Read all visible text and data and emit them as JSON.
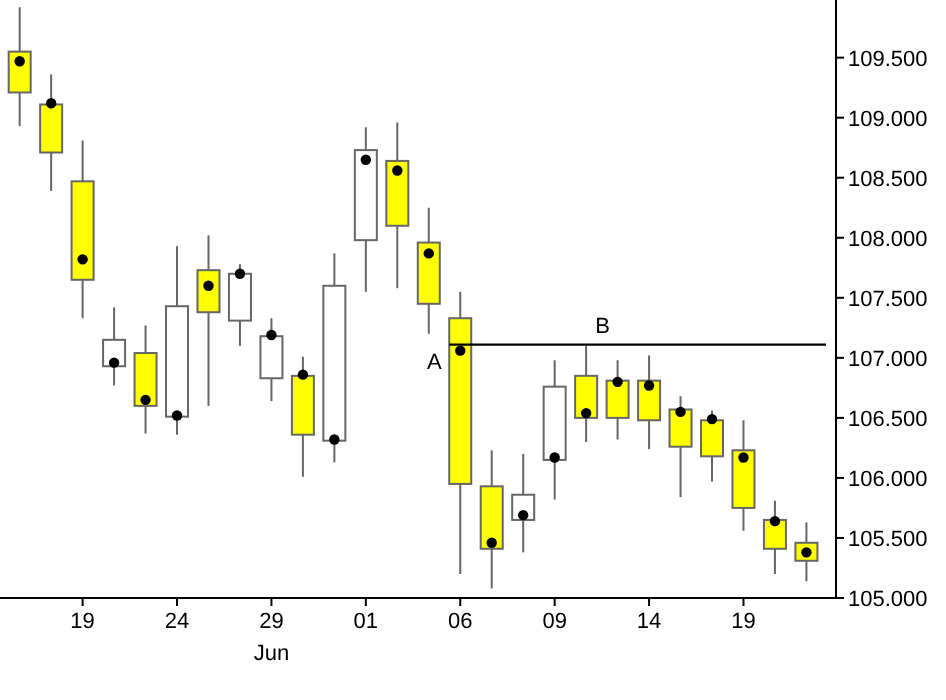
{
  "chart_data": {
    "type": "candlestick",
    "categories": [
      null,
      null,
      "19",
      null,
      null,
      "24",
      null,
      null,
      "29",
      null,
      null,
      "01",
      null,
      null,
      "06",
      null,
      null,
      "09",
      null,
      null,
      "14",
      null,
      null,
      "19",
      null,
      null
    ],
    "xlabel": "Jun",
    "ohlc": [
      [
        109.55,
        109.92,
        108.93,
        109.21
      ],
      [
        109.11,
        109.36,
        108.39,
        108.71
      ],
      [
        108.47,
        108.81,
        107.33,
        107.65
      ],
      [
        106.93,
        107.42,
        106.77,
        107.15
      ],
      [
        107.04,
        107.27,
        106.37,
        106.6
      ],
      [
        106.51,
        107.93,
        106.36,
        107.43
      ],
      [
        107.73,
        108.02,
        106.6,
        107.38
      ],
      [
        107.31,
        107.78,
        107.1,
        107.7
      ],
      [
        106.83,
        107.33,
        106.64,
        107.18
      ],
      [
        106.85,
        107.01,
        106.01,
        106.36
      ],
      [
        106.31,
        107.87,
        106.13,
        107.6
      ],
      [
        107.98,
        108.92,
        107.55,
        108.73
      ],
      [
        108.64,
        108.96,
        107.58,
        108.1
      ],
      [
        107.96,
        108.25,
        107.2,
        107.45
      ],
      [
        107.33,
        107.55,
        105.2,
        105.95
      ],
      [
        105.93,
        106.23,
        105.08,
        105.41
      ],
      [
        105.65,
        106.2,
        105.38,
        105.86
      ],
      [
        106.15,
        106.98,
        105.82,
        106.76
      ],
      [
        106.85,
        107.1,
        106.3,
        106.5
      ],
      [
        106.81,
        106.98,
        106.32,
        106.5
      ],
      [
        106.81,
        107.02,
        106.24,
        106.48
      ],
      [
        106.57,
        106.68,
        105.84,
        106.26
      ],
      [
        106.48,
        106.56,
        105.97,
        106.18
      ],
      [
        106.23,
        106.48,
        105.56,
        105.75
      ],
      [
        105.65,
        105.81,
        105.2,
        105.41
      ],
      [
        105.46,
        105.63,
        105.14,
        105.31
      ]
    ],
    "colors": [
      "#ffff00",
      "#ffff00",
      "#ffff00",
      "#ffffff",
      "#ffff00",
      "#ffffff",
      "#ffff00",
      "#ffffff",
      "#ffffff",
      "#ffff00",
      "#ffffff",
      "#ffffff",
      "#ffff00",
      "#ffff00",
      "#ffff00",
      "#ffff00",
      "#ffffff",
      "#ffffff",
      "#ffff00",
      "#ffff00",
      "#ffff00",
      "#ffff00",
      "#ffff00",
      "#ffff00",
      "#ffff00",
      "#ffff00"
    ],
    "series": [
      {
        "type": "scatter",
        "color": "#000000",
        "values": [
          109.47,
          109.12,
          107.82,
          106.96,
          106.65,
          106.52,
          107.6,
          107.7,
          107.19,
          106.86,
          106.32,
          108.65,
          108.56,
          107.87,
          107.06,
          105.46,
          105.69,
          106.17,
          106.54,
          106.8,
          106.77,
          106.55,
          106.49,
          106.17,
          105.64,
          105.38
        ]
      }
    ],
    "marker": "circle",
    "ylim": [
      105.0,
      109.98
    ],
    "yticks": [
      {
        "value": 105,
        "label": "105.000"
      },
      {
        "value": 105.5,
        "label": "105.500"
      },
      {
        "value": 106,
        "label": "106.000"
      },
      {
        "value": 106.5,
        "label": "106.500"
      },
      {
        "value": 107,
        "label": "107.000"
      },
      {
        "value": 107.5,
        "label": "107.500"
      },
      {
        "value": 108,
        "label": "108.000"
      },
      {
        "value": 108.5,
        "label": "108.500"
      },
      {
        "value": 109,
        "label": "109.000"
      },
      {
        "value": 109.5,
        "label": "109.500"
      }
    ],
    "ref_lines": [
      {
        "axis": "y",
        "value": 107.11,
        "label": "B",
        "color": "#000000"
      }
    ],
    "annotations": [
      {
        "text": "A",
        "x": "06",
        "y": 107.11
      }
    ],
    "grid": false
  }
}
